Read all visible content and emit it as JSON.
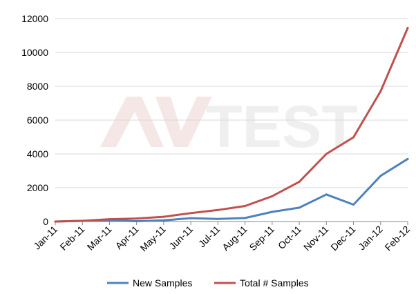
{
  "chart_data": {
    "type": "line",
    "categories": [
      "Jan-11",
      "Feb-11",
      "Mar-11",
      "Apr-11",
      "May-11",
      "Jun-11",
      "Jul-11",
      "Aug-11",
      "Sep-11",
      "Oct-11",
      "Nov-11",
      "Dec-11",
      "Jan-12",
      "Feb-12"
    ],
    "series": [
      {
        "name": "New Samples",
        "color": "#4f81bd",
        "values": [
          0,
          40,
          70,
          20,
          70,
          200,
          150,
          210,
          570,
          820,
          1600,
          1000,
          2700,
          3700
        ]
      },
      {
        "name": "Total # Samples",
        "color": "#c0504d",
        "values": [
          0,
          40,
          140,
          180,
          280,
          500,
          680,
          920,
          1500,
          2350,
          4000,
          4980,
          7700,
          11450
        ]
      }
    ],
    "y_ticks": [
      "0",
      "2000",
      "4000",
      "6000",
      "8000",
      "10000",
      "12000"
    ],
    "ylim": [
      0,
      12000
    ],
    "grid": "horizontal",
    "legend_position": "bottom",
    "title": "",
    "xlabel": "",
    "ylabel": ""
  },
  "watermark": {
    "text": "AV-TEST",
    "color_left": "#c0504d",
    "color_right": "#8c8c8c"
  }
}
